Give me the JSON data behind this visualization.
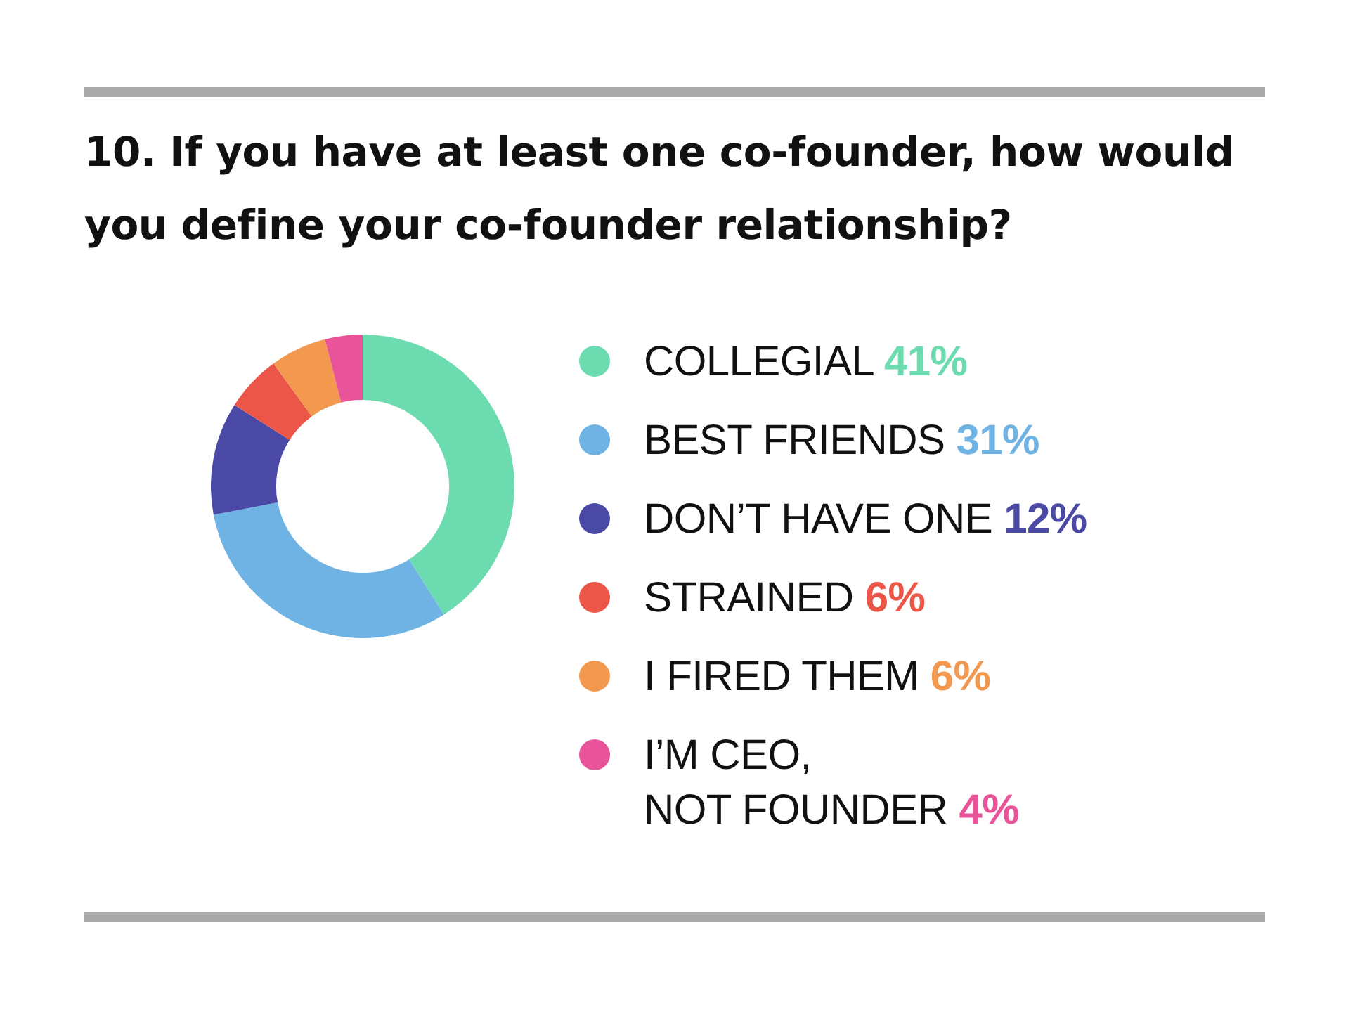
{
  "chart_data": {
    "type": "donut",
    "title": "10. If you have at least one co-founder, how would you define your co-founder relationship?",
    "categories": [
      "COLLEGIAL",
      "BEST FRIENDS",
      "DON’T HAVE ONE",
      "STRAINED",
      "I FIRED THEM",
      "I’M CEO,\nNOT FOUNDER"
    ],
    "values": [
      41,
      31,
      12,
      6,
      6,
      4
    ],
    "value_labels": [
      "41%",
      "31%",
      "12%",
      "6%",
      "6%",
      "4%"
    ],
    "colors": [
      "#6cdbb0",
      "#6eb3e4",
      "#4a4aa6",
      "#eb5648",
      "#f3984f",
      "#e9539a"
    ],
    "legend": "right"
  }
}
